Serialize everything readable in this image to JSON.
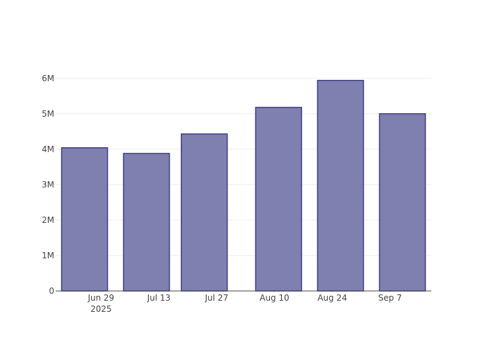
{
  "chart_data": {
    "type": "bar",
    "x": [
      "2025-06-25",
      "2025-07-10",
      "2025-07-24",
      "2025-08-11",
      "2025-08-26",
      "2025-09-10"
    ],
    "values": [
      4040000,
      3880000,
      4430000,
      5180000,
      5940000,
      5000000
    ],
    "color": "#7f7fb0",
    "xlim": [
      "2025-06-18",
      "2025-09-17"
    ],
    "xticks": [
      {
        "value": "2025-06-29",
        "label": "Jun 29\n2025"
      },
      {
        "value": "2025-07-13",
        "label": "Jul 13"
      },
      {
        "value": "2025-07-27",
        "label": "Jul 27"
      },
      {
        "value": "2025-08-10",
        "label": "Aug 10"
      },
      {
        "value": "2025-08-24",
        "label": "Aug 24"
      },
      {
        "value": "2025-09-07",
        "label": "Sep 7"
      }
    ],
    "ylim": [
      0,
      6250000
    ],
    "yticks": [
      0,
      {
        "value": 1000000,
        "label": "1M"
      },
      {
        "value": 2000000,
        "label": "2M"
      },
      {
        "value": 3000000,
        "label": "3M"
      },
      {
        "value": 4000000,
        "label": "4M"
      },
      {
        "value": 5000000,
        "label": "5M"
      },
      {
        "value": 6000000,
        "label": "6M"
      }
    ],
    "grid": true
  }
}
